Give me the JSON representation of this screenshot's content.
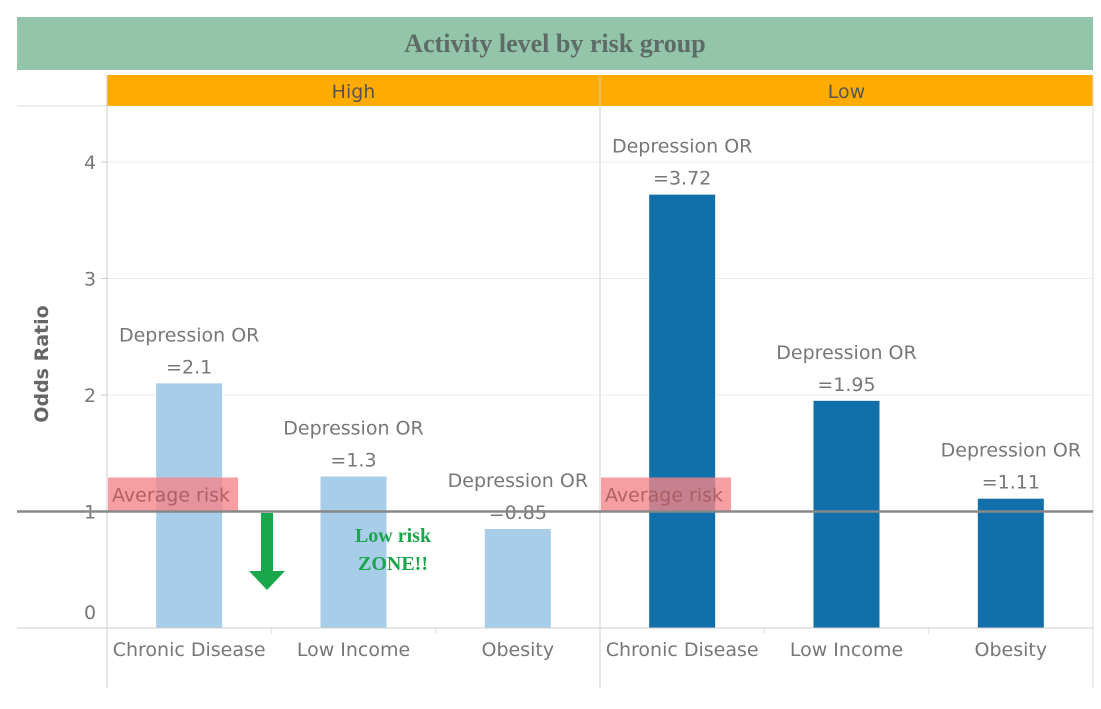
{
  "chart_data": {
    "type": "bar",
    "title": "Activity level by risk group",
    "ylabel": "Odds Ratio",
    "xlabel": "",
    "ylim": [
      0,
      4.5
    ],
    "y_ticks": [
      0,
      1,
      2,
      3,
      4
    ],
    "grid": true,
    "categories": [
      "Chronic Disease",
      "Low Income",
      "Obesity"
    ],
    "reference_line": {
      "value": 1,
      "label": "Average risk",
      "color": "#888888"
    },
    "reference_label_color": "#f4868a",
    "panels": [
      {
        "name": "High",
        "values": [
          2.1,
          1.3,
          0.85
        ],
        "value_labels": [
          "Depression OR\n=2.1",
          "Depression OR\n=1.3",
          "Depression OR\n=0.85"
        ],
        "color": "#a8cde8"
      },
      {
        "name": "Low",
        "values": [
          3.72,
          1.95,
          1.11
        ],
        "value_labels": [
          "Depression OR\n=3.72",
          "Depression OR\n=1.95",
          "Depression OR\n=1.11"
        ],
        "color": "#1170aa"
      }
    ],
    "header_color": "#ffab00",
    "title_bar_color": "#93c5ab",
    "annotation": {
      "text_lines": [
        "Low risk",
        "ZONE!!"
      ],
      "color": "#1aa64a",
      "arrow": "down-arrow"
    }
  }
}
